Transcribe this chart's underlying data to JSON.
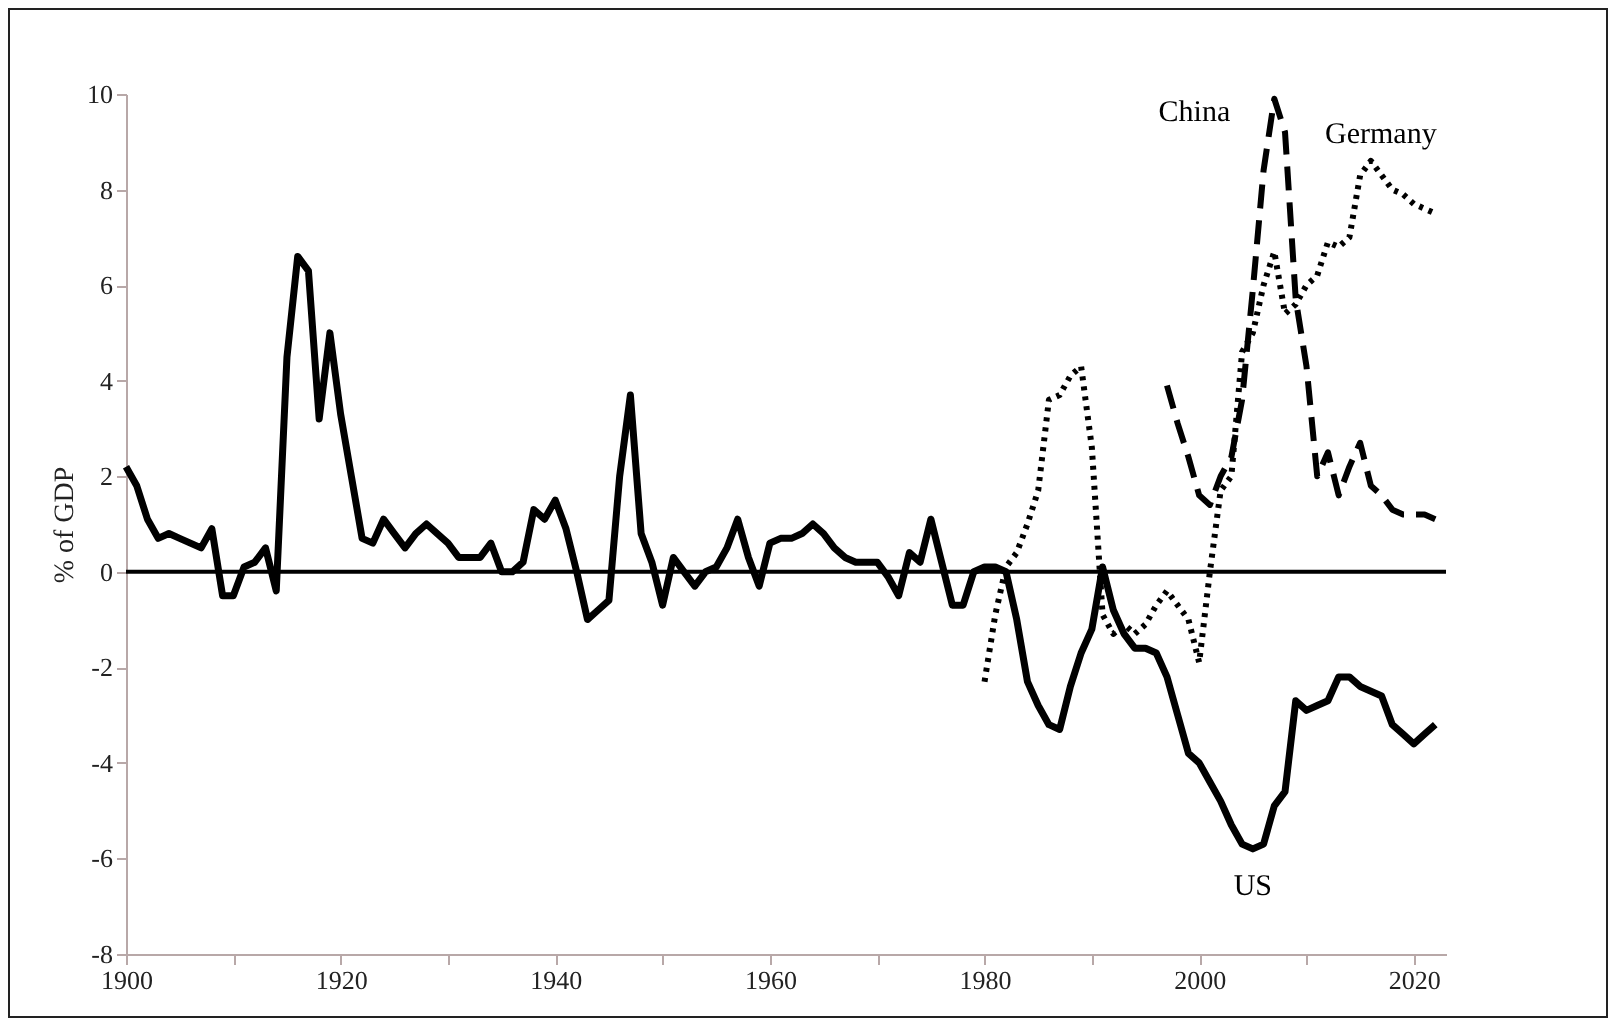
{
  "chart_data": {
    "type": "line",
    "ylabel": "% of GDP",
    "xlim": [
      1900,
      2023
    ],
    "ylim": [
      -8,
      10
    ],
    "xticks": [
      1900,
      {
        "value": 1910,
        "label": null
      },
      1920,
      {
        "value": 1930,
        "label": null
      },
      1940,
      {
        "value": 1950,
        "label": null
      },
      1960,
      {
        "value": 1970,
        "label": null
      },
      1980,
      {
        "value": 1990,
        "label": null
      },
      2000,
      {
        "value": 2010,
        "label": null
      },
      2020
    ],
    "yticks": [
      -8,
      -6,
      -4,
      -2,
      0,
      2,
      4,
      6,
      8,
      10
    ],
    "grid": false,
    "marker": "none",
    "ref_lines": [
      {
        "axis": "y",
        "value": 0,
        "color": "#000000"
      }
    ],
    "series": [
      {
        "name": "US",
        "color": "#000000",
        "line_style": "solid",
        "x": [
          1900,
          1901,
          1902,
          1903,
          1904,
          1905,
          1906,
          1907,
          1908,
          1909,
          1910,
          1911,
          1912,
          1913,
          1914,
          1915,
          1916,
          1917,
          1918,
          1919,
          1920,
          1921,
          1922,
          1923,
          1924,
          1925,
          1926,
          1927,
          1928,
          1929,
          1930,
          1931,
          1932,
          1933,
          1934,
          1935,
          1936,
          1937,
          1938,
          1939,
          1940,
          1941,
          1942,
          1943,
          1944,
          1945,
          1946,
          1947,
          1948,
          1949,
          1950,
          1951,
          1952,
          1953,
          1954,
          1955,
          1956,
          1957,
          1958,
          1959,
          1960,
          1961,
          1962,
          1963,
          1964,
          1965,
          1966,
          1967,
          1968,
          1969,
          1970,
          1971,
          1972,
          1973,
          1974,
          1975,
          1976,
          1977,
          1978,
          1979,
          1980,
          1981,
          1982,
          1983,
          1984,
          1985,
          1986,
          1987,
          1988,
          1989,
          1990,
          1991,
          1992,
          1993,
          1994,
          1995,
          1996,
          1997,
          1998,
          1999,
          2000,
          2001,
          2002,
          2003,
          2004,
          2005,
          2006,
          2007,
          2008,
          2009,
          2010,
          2011,
          2012,
          2013,
          2014,
          2015,
          2016,
          2017,
          2018,
          2019,
          2020,
          2021,
          2022
        ],
        "values": [
          2.2,
          1.8,
          1.1,
          0.7,
          0.8,
          0.7,
          0.6,
          0.5,
          0.9,
          -0.5,
          -0.5,
          0.1,
          0.2,
          0.5,
          -0.4,
          4.5,
          6.6,
          6.3,
          3.2,
          5.0,
          3.3,
          2.0,
          0.7,
          0.6,
          1.1,
          0.8,
          0.5,
          0.8,
          1.0,
          0.8,
          0.6,
          0.3,
          0.3,
          0.3,
          0.6,
          0.0,
          0.0,
          0.2,
          1.3,
          1.1,
          1.5,
          0.9,
          0.0,
          -1.0,
          -0.8,
          -0.6,
          2.0,
          3.7,
          0.8,
          0.2,
          -0.7,
          0.3,
          0.0,
          -0.3,
          0.0,
          0.1,
          0.5,
          1.1,
          0.3,
          -0.3,
          0.6,
          0.7,
          0.7,
          0.8,
          1.0,
          0.8,
          0.5,
          0.3,
          0.2,
          0.2,
          0.2,
          -0.1,
          -0.5,
          0.4,
          0.2,
          1.1,
          0.2,
          -0.7,
          -0.7,
          0.0,
          0.1,
          0.1,
          0.0,
          -1.0,
          -2.3,
          -2.8,
          -3.2,
          -3.3,
          -2.4,
          -1.7,
          -1.2,
          0.1,
          -0.8,
          -1.3,
          -1.6,
          -1.6,
          -1.7,
          -2.2,
          -3.0,
          -3.8,
          -4.0,
          -4.4,
          -4.8,
          -5.3,
          -5.7,
          -5.8,
          -5.7,
          -4.9,
          -4.6,
          -2.7,
          -2.9,
          -2.8,
          -2.7,
          -2.2,
          -2.2,
          -2.4,
          -2.5,
          -2.6,
          -3.2,
          -3.4,
          -3.6,
          -3.4,
          -3.2
        ]
      },
      {
        "name": "China",
        "color": "#000000",
        "line_style": "dashed",
        "x": [
          1997,
          1998,
          1999,
          2000,
          2001,
          2002,
          2003,
          2004,
          2005,
          2006,
          2007,
          2008,
          2009,
          2010,
          2011,
          2012,
          2013,
          2014,
          2015,
          2016,
          2017,
          2018,
          2019,
          2020,
          2021,
          2022
        ],
        "values": [
          3.9,
          3.1,
          2.4,
          1.6,
          1.4,
          2.0,
          2.4,
          3.6,
          5.9,
          8.4,
          9.9,
          9.2,
          5.7,
          4.3,
          2.0,
          2.5,
          1.6,
          2.2,
          2.7,
          1.8,
          1.6,
          1.3,
          1.2,
          1.2,
          1.2,
          1.1
        ]
      },
      {
        "name": "Germany",
        "color": "#000000",
        "line_style": "dotted",
        "x": [
          1980,
          1981,
          1982,
          1983,
          1984,
          1985,
          1986,
          1987,
          1988,
          1989,
          1990,
          1991,
          1992,
          1993,
          1994,
          1995,
          1996,
          1997,
          1998,
          1999,
          2000,
          2001,
          2002,
          2003,
          2004,
          2005,
          2006,
          2007,
          2008,
          2009,
          2010,
          2011,
          2012,
          2013,
          2014,
          2015,
          2016,
          2017,
          2018,
          2019,
          2020,
          2021,
          2022
        ],
        "values": [
          -2.3,
          -0.9,
          0.1,
          0.4,
          1.0,
          1.7,
          3.6,
          3.7,
          4.1,
          4.3,
          2.6,
          -0.9,
          -1.3,
          -1.1,
          -1.3,
          -1.1,
          -0.7,
          -0.4,
          -0.7,
          -1.0,
          -1.9,
          0.0,
          1.7,
          2.0,
          4.6,
          5.0,
          6.0,
          6.7,
          5.4,
          5.6,
          6.0,
          6.2,
          6.9,
          6.8,
          7.0,
          8.3,
          8.6,
          8.3,
          8.0,
          7.9,
          7.7,
          7.6,
          7.5
        ]
      }
    ]
  }
}
